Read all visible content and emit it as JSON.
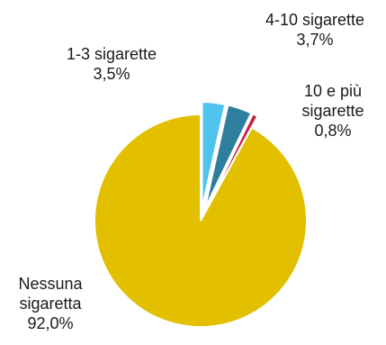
{
  "chart_data": {
    "type": "pie",
    "title": "",
    "slices": [
      {
        "label": "Nessuna sigaretta",
        "label_lines": [
          "Nessuna",
          "sigaretta"
        ],
        "value": 92.0,
        "value_label": "92,0%",
        "color": "#E2C000",
        "exploded": false
      },
      {
        "label": "1-3 sigarette",
        "label_lines": [
          "1-3 sigarette"
        ],
        "value": 3.5,
        "value_label": "3,5%",
        "color": "#4FC3EE",
        "exploded": true
      },
      {
        "label": "4-10 sigarette",
        "label_lines": [
          "4-10 sigarette"
        ],
        "value": 3.7,
        "value_label": "3,7%",
        "color": "#2E7F9E",
        "exploded": true
      },
      {
        "label": "10 e più sigarette",
        "label_lines": [
          "10 e più",
          "sigarette"
        ],
        "value": 0.8,
        "value_label": "0,8%",
        "color": "#C8203E",
        "exploded": true
      }
    ]
  }
}
